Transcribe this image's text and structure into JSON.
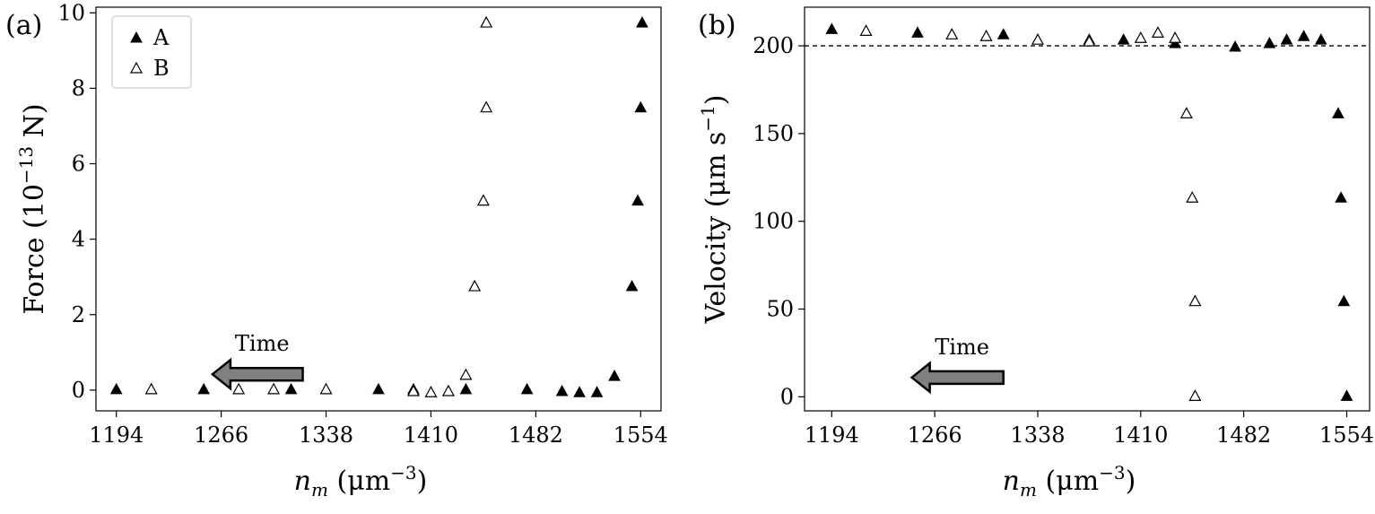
{
  "chart_data": [
    {
      "type": "scatter",
      "panel_label": "(a)",
      "ylabel": "Force (10⁻¹³ N)",
      "xlabel": "n_m (μm⁻³)",
      "xticks": [
        1194,
        1266,
        1338,
        1410,
        1482,
        1554
      ],
      "yticks": [
        0,
        2,
        4,
        6,
        8,
        10
      ],
      "xlim": [
        1180,
        1568
      ],
      "ylim": [
        -0.55,
        10.15
      ],
      "legend": "top-left",
      "annotation": {
        "text": "Time",
        "arrow_from_x": 1322,
        "arrow_to_x": 1260,
        "arrow_y": 0.42,
        "direction": "left"
      },
      "series": [
        {
          "name": "A",
          "marker": "filled-triangle",
          "x": [
            1194,
            1254,
            1314,
            1374,
            1398,
            1434,
            1476,
            1500,
            1512,
            1524,
            1536,
            1548,
            1552,
            1554
          ],
          "y": [
            0.0,
            0.0,
            0.0,
            0.0,
            0.0,
            0.0,
            0.0,
            -0.05,
            -0.08,
            -0.08,
            0.35,
            2.73,
            5.0,
            7.47
          ]
        },
        {
          "name": "B",
          "marker": "open-triangle",
          "x": [
            1218,
            1278,
            1302,
            1338,
            1398,
            1410,
            1422,
            1434,
            1440,
            1446,
            1448,
            1448
          ],
          "y": [
            0.0,
            0.0,
            0.0,
            0.0,
            -0.05,
            -0.08,
            -0.05,
            0.38,
            2.73,
            5.0,
            7.47,
            9.72
          ]
        }
      ],
      "extra_points": [
        {
          "series": "A",
          "x": 1555,
          "y": 9.72
        }
      ]
    },
    {
      "type": "scatter",
      "panel_label": "(b)",
      "ylabel": "Velocity (μm s⁻¹)",
      "xlabel": "n_m (μm⁻³)",
      "xticks": [
        1194,
        1266,
        1338,
        1410,
        1482,
        1554
      ],
      "yticks": [
        0,
        50,
        100,
        150,
        200
      ],
      "xlim": [
        1175,
        1570
      ],
      "ylim": [
        -8,
        222
      ],
      "reference_line_y": 200,
      "annotation": {
        "text": "Time",
        "arrow_from_x": 1314,
        "arrow_to_x": 1250,
        "arrow_y": 11,
        "direction": "left"
      },
      "series": [
        {
          "name": "A",
          "marker": "filled-triangle",
          "x": [
            1194,
            1254,
            1314,
            1374,
            1398,
            1434,
            1476,
            1500,
            1512,
            1524,
            1536,
            1548,
            1550,
            1552
          ],
          "y": [
            209,
            207,
            206,
            203,
            203,
            201,
            199,
            201,
            203,
            205,
            203,
            161,
            113,
            54
          ]
        },
        {
          "name": "B",
          "marker": "open-triangle",
          "x": [
            1218,
            1278,
            1302,
            1338,
            1374,
            1410,
            1422,
            1434,
            1442,
            1446,
            1448,
            1448
          ],
          "y": [
            208,
            206,
            205,
            203,
            202,
            204,
            207,
            204,
            161,
            113,
            54,
            0
          ]
        }
      ],
      "extra_points": [
        {
          "series": "A",
          "x": 1554,
          "y": 0
        }
      ]
    }
  ],
  "legend": {
    "items": [
      {
        "label": "A"
      },
      {
        "label": "B"
      }
    ]
  }
}
